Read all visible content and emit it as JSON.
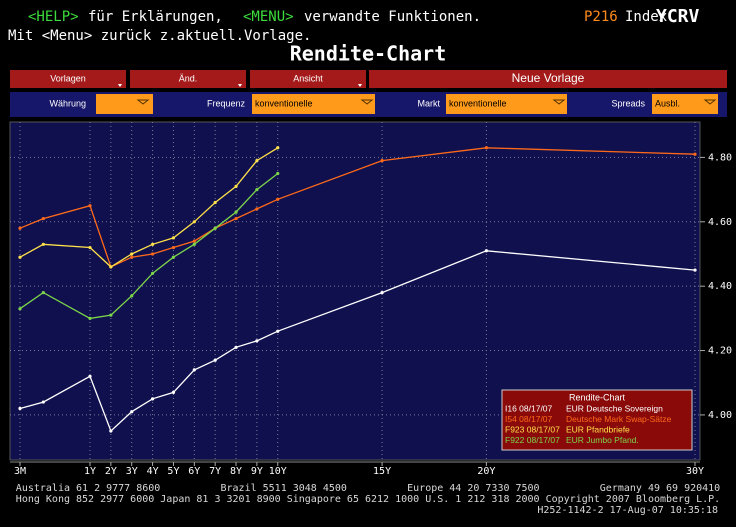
{
  "header": {
    "help_key": "<HELP>",
    "help_text": "für Erklärungen,",
    "menu_key": "<MENU>",
    "menu_text": "verwandte Funktionen.",
    "page_code": "P216",
    "page_type": "Index",
    "ticker": "YCRV",
    "line2": "Mit <Menu> zurück z.aktuell.Vorlage.",
    "title": "Rendite-Chart"
  },
  "toolbar": {
    "buttons": [
      "Vorlagen",
      "Änd.",
      "Ansicht"
    ],
    "new_template": "Neue Vorlage"
  },
  "filters": [
    {
      "label": "Währung"
    },
    {
      "label": "Frequenz",
      "value": "konventionelle"
    },
    {
      "label": "Markt",
      "value": "konventionelle"
    },
    {
      "label": "Spreads",
      "value": "Ausbl."
    }
  ],
  "chart_data": {
    "type": "line",
    "legend_title": "Rendite-Chart",
    "grid": true,
    "legend": "lower right",
    "x": [
      0.25,
      0.5,
      1,
      2,
      3,
      4,
      5,
      6,
      7,
      8,
      9,
      10,
      15,
      20,
      30
    ],
    "xlim": [
      0.25,
      30
    ],
    "xticks": [
      {
        "value": 0.25,
        "label": "3M"
      },
      {
        "value": 1,
        "label": "1Y"
      },
      {
        "value": 2,
        "label": "2Y"
      },
      {
        "value": 3,
        "label": "3Y"
      },
      {
        "value": 4,
        "label": "4Y"
      },
      {
        "value": 5,
        "label": "5Y"
      },
      {
        "value": 6,
        "label": "6Y"
      },
      {
        "value": 7,
        "label": "7Y"
      },
      {
        "value": 8,
        "label": "8Y"
      },
      {
        "value": 9,
        "label": "9Y"
      },
      {
        "value": 10,
        "label": "10Y"
      },
      {
        "value": 15,
        "label": "15Y"
      },
      {
        "value": 20,
        "label": "20Y"
      },
      {
        "value": 30,
        "label": "30Y"
      }
    ],
    "ylim": [
      3.86,
      4.91
    ],
    "yticks": [
      {
        "value": 4,
        "label": "4.00"
      },
      {
        "value": 4.2,
        "label": "4.20"
      },
      {
        "value": 4.4,
        "label": "4.40"
      },
      {
        "value": 4.6,
        "label": "4.60"
      },
      {
        "value": 4.8,
        "label": "4.80"
      }
    ],
    "series": [
      {
        "code": "I16 08/17/07",
        "name": "EUR Deutsche Sovereign",
        "color": "#ffffff",
        "values": [
          4.02,
          4.04,
          4.12,
          3.95,
          4.01,
          4.05,
          4.07,
          4.14,
          4.17,
          4.21,
          4.23,
          4.26,
          4.38,
          4.51,
          4.45
        ]
      },
      {
        "code": "I54 08/17/07",
        "name": "Deutsche Mark Swap-Sätze",
        "color": "#ff6a1a",
        "values": [
          4.58,
          4.61,
          4.65,
          4.46,
          4.49,
          4.5,
          4.52,
          4.54,
          4.58,
          4.61,
          4.64,
          4.67,
          4.79,
          4.83,
          4.81
        ]
      },
      {
        "code": "F923 08/17/07",
        "name": "EUR Pfandbriefe",
        "color": "#ffe14a",
        "values": [
          4.49,
          4.53,
          4.52,
          4.46,
          4.5,
          4.53,
          4.55,
          4.6,
          4.66,
          4.71,
          4.79,
          4.83,
          null,
          null,
          null
        ]
      },
      {
        "code": "F922 08/17/07",
        "name": "EUR Jumbo Pfand.",
        "color": "#7cd64a",
        "values": [
          4.33,
          4.38,
          4.3,
          4.31,
          4.37,
          4.44,
          4.49,
          4.53,
          4.58,
          4.63,
          4.7,
          4.75,
          null,
          null,
          null
        ]
      }
    ]
  },
  "footer": [
    "Australia 61 2 9777 8600          Brazil 5511 3048 4500          Europe 44 20 7330 7500          Germany 49 69 920410",
    "Hong Kong 852 2977 6000 Japan 81 3 3201 8900 Singapore 65 6212 1000 U.S. 1 212 318 2000 Copyright 2007 Bloomberg L.P.",
    "H252-1142-2 17-Aug-07 10:35:18"
  ]
}
